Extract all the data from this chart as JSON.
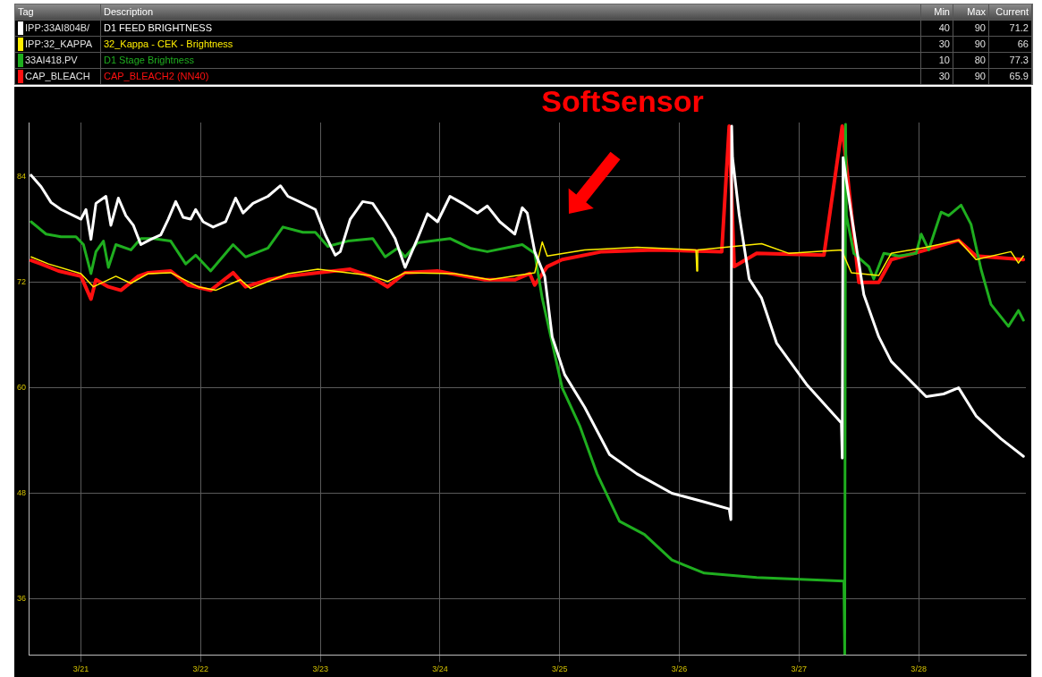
{
  "chart_data": {
    "type": "line",
    "legend": "top",
    "grid": true,
    "marker": "none",
    "line_style": "solid",
    "xlim": [
      "--03-20T13:30",
      "--03-28T21:30"
    ],
    "xticks": [
      {
        "value": "--03-21",
        "label": "3/21"
      },
      {
        "value": "--03-22",
        "label": "3/22"
      },
      {
        "value": "--03-23",
        "label": "3/23"
      },
      {
        "value": "--03-24",
        "label": "3/24"
      },
      {
        "value": "--03-25",
        "label": "3/25"
      },
      {
        "value": "--03-26",
        "label": "3/26"
      },
      {
        "value": "--03-27",
        "label": "3/27"
      },
      {
        "value": "--03-28",
        "label": "3/28"
      }
    ],
    "ylim": [
      29.6,
      90.2
    ],
    "yticks": [
      36,
      48,
      60,
      72,
      84
    ],
    "annotations": [
      "SoftSensor",
      "Tag",
      "Description",
      "Min",
      "Max",
      "Current",
      "IPP:33AI804B/",
      "40",
      "90",
      "71.2",
      "IPP:32_KAPPA",
      "30",
      "90",
      "66",
      "33AI418.PV",
      "10",
      "80",
      "77.3",
      "CAP_BLEACH",
      "30",
      "90",
      "65.9"
    ],
    "series": [
      {
        "name": "D1 FEED BRIGHTNESS",
        "color": "#ffffff",
        "x": [
          "--03-20T14:00",
          "--03-20T16:00",
          "--03-20T18:00",
          "--03-20T20:00",
          "--03-21T00:00",
          "--03-21T01:00",
          "--03-21T02:00",
          "--03-21T03:00",
          "--03-21T05:00",
          "--03-21T06:00",
          "--03-21T07:30",
          "--03-21T09:00",
          "--03-21T10:30",
          "--03-21T12:00",
          "--03-21T14:00",
          "--03-21T16:00",
          "--03-21T17:30",
          "--03-21T19:00",
          "--03-21T20:30",
          "--03-21T22:00",
          "--03-21T23:00",
          "--03-22T00:30",
          "--03-22T02:30",
          "--03-22T05:00",
          "--03-22T07:00",
          "--03-22T08:30",
          "--03-22T10:30",
          "--03-22T13:30",
          "--03-22T16:00",
          "--03-22T17:30",
          "--03-22T20:30",
          "--03-22T23:00",
          "--03-23T01:00",
          "--03-23T03:00",
          "--03-23T04:00",
          "--03-23T06:00",
          "--03-23T08:30",
          "--03-23T10:30",
          "--03-23T13:00",
          "--03-23T15:00",
          "--03-23T17:00",
          "--03-23T19:30",
          "--03-23T21:30",
          "--03-23T23:30",
          "--03-24T02:00",
          "--03-24T04:30",
          "--03-24T07:30",
          "--03-24T09:30",
          "--03-24T12:00",
          "--03-24T15:00",
          "--03-24T16:30",
          "--03-24T17:30",
          "--03-24T19:00",
          "--03-24T21:00",
          "--03-24T22:30",
          "--03-25T01:00",
          "--03-25T05:00",
          "--03-25T10:00",
          "--03-25T15:30",
          "--03-25T22:30",
          "--03-26T05:00",
          "--03-26T10:00",
          "--03-26T10:20",
          "--03-26T10:30",
          "--03-26T10:40",
          "--03-26T12:00",
          "--03-26T14:00",
          "--03-26T16:30",
          "--03-26T19:30",
          "--03-27T01:30",
          "--03-27T08:30",
          "--03-27T08:40",
          "--03-27T08:50",
          "--03-27T10:30",
          "--03-27T13:00",
          "--03-27T16:00",
          "--03-27T18:30",
          "--03-28T01:30",
          "--03-28T05:00",
          "--03-28T08:00",
          "--03-28T11:30",
          "--03-28T16:30",
          "--03-28T21:00"
        ],
        "values": [
          84.2,
          82.9,
          81.1,
          80.3,
          79.2,
          80.3,
          76.9,
          81.0,
          81.8,
          78.5,
          81.6,
          79.6,
          78.5,
          76.3,
          76.9,
          77.4,
          79.2,
          81.2,
          79.4,
          79.2,
          80.3,
          78.9,
          78.3,
          78.9,
          81.6,
          79.9,
          81.0,
          81.8,
          83.0,
          81.8,
          81.0,
          80.3,
          77.4,
          75.1,
          75.5,
          79.2,
          81.2,
          81.0,
          78.9,
          77.0,
          73.7,
          77.0,
          79.8,
          78.9,
          81.8,
          81.0,
          79.9,
          80.7,
          78.9,
          77.5,
          80.5,
          79.9,
          75.5,
          72.7,
          65.8,
          61.5,
          57.8,
          52.4,
          50.2,
          48.0,
          47.0,
          46.2,
          45.0,
          89.8,
          86.2,
          79.7,
          72.4,
          70.2,
          65.1,
          60.4,
          56.0,
          52.0,
          86.2,
          79.7,
          70.6,
          65.8,
          63.0,
          59.0,
          59.3,
          60.0,
          56.8,
          54.2,
          52.2
        ]
      },
      {
        "name": "32_Kappa - CEK - Brightness",
        "color": "#ffee00",
        "x": [
          "--03-20T14:00",
          "--03-20T17:30",
          "--03-21T00:00",
          "--03-21T02:30",
          "--03-21T07:00",
          "--03-21T10:00",
          "--03-21T13:30",
          "--03-21T18:00",
          "--03-21T23:30",
          "--03-22T03:00",
          "--03-22T08:00",
          "--03-22T10:00",
          "--03-22T17:30",
          "--03-22T23:30",
          "--03-23T10:00",
          "--03-23T13:30",
          "--03-23T17:00",
          "--03-24T03:00",
          "--03-24T10:00",
          "--03-24T19:00",
          "--03-24T20:30",
          "--03-24T21:30",
          "--03-25T05:00",
          "--03-25T15:30",
          "--03-26T03:20",
          "--03-26T03:30",
          "--03-26T03:40",
          "--03-26T16:30",
          "--03-26T22:00",
          "--03-27T08:30",
          "--03-27T10:30",
          "--03-27T16:00",
          "--03-27T18:30",
          "--03-28T01:30",
          "--03-28T08:00",
          "--03-28T11:30",
          "--03-28T18:30",
          "--03-28T20:00",
          "--03-28T21:00"
        ],
        "values": [
          74.9,
          74.1,
          73.0,
          71.5,
          72.7,
          71.9,
          73.0,
          73.1,
          71.5,
          71.1,
          72.3,
          71.3,
          73.0,
          73.5,
          72.8,
          72.1,
          73.1,
          73.0,
          72.3,
          73.1,
          76.6,
          75.0,
          75.7,
          76.0,
          75.7,
          73.3,
          75.7,
          76.4,
          75.3,
          75.7,
          73.1,
          72.8,
          75.3,
          76.0,
          76.8,
          74.6,
          75.5,
          74.2,
          75.0
        ]
      },
      {
        "name": "D1 Stage Brightness",
        "color": "#1fae1f",
        "x": [
          "--03-20T14:00",
          "--03-20T17:00",
          "--03-20T20:00",
          "--03-20T23:00",
          "--03-21T00:30",
          "--03-21T02:00",
          "--03-21T03:00",
          "--03-21T04:30",
          "--03-21T05:30",
          "--03-21T07:00",
          "--03-21T10:00",
          "--03-21T12:00",
          "--03-21T14:30",
          "--03-21T18:00",
          "--03-21T21:00",
          "--03-21T23:00",
          "--03-22T02:00",
          "--03-22T06:30",
          "--03-22T09:00",
          "--03-22T13:30",
          "--03-22T16:30",
          "--03-22T20:30",
          "--03-22T23:00",
          "--03-23T01:30",
          "--03-23T05:30",
          "--03-23T10:30",
          "--03-23T13:00",
          "--03-23T15:30",
          "--03-23T17:00",
          "--03-23T19:30",
          "--03-24T02:00",
          "--03-24T06:00",
          "--03-24T09:30",
          "--03-24T16:30",
          "--03-24T19:00",
          "--03-24T20:30",
          "--03-24T22:30",
          "--03-25T00:30",
          "--03-25T04:00",
          "--03-25T07:30",
          "--03-25T12:00",
          "--03-25T17:00",
          "--03-25T22:30",
          "--03-26T05:00",
          "--03-26T15:30",
          "--03-27T09:00",
          "--03-27T09:10",
          "--03-27T09:20",
          "--03-27T09:30",
          "--03-27T11:00",
          "--03-27T14:00",
          "--03-27T15:00",
          "--03-27T17:00",
          "--03-27T20:00",
          "--03-27T23:30",
          "--03-28T00:30",
          "--03-28T02:00",
          "--03-28T04:30",
          "--03-28T06:00",
          "--03-28T08:30",
          "--03-28T10:30",
          "--03-28T12:30",
          "--03-28T14:30",
          "--03-28T18:00",
          "--03-28T20:00",
          "--03-28T21:00"
        ],
        "values": [
          78.9,
          77.5,
          77.2,
          77.2,
          76.3,
          73.0,
          75.5,
          76.7,
          73.7,
          76.3,
          75.7,
          77.0,
          77.0,
          76.7,
          74.1,
          75.1,
          73.3,
          76.3,
          74.9,
          75.9,
          78.3,
          77.7,
          77.7,
          76.1,
          76.7,
          77.0,
          74.9,
          75.9,
          74.9,
          76.5,
          77.0,
          75.9,
          75.5,
          76.3,
          75.3,
          70.2,
          65.1,
          60.0,
          55.7,
          50.2,
          44.8,
          43.3,
          40.4,
          38.9,
          38.4,
          38.0,
          29.6,
          90.0,
          79.6,
          75.3,
          73.8,
          72.4,
          75.3,
          75.0,
          75.3,
          77.5,
          75.7,
          80.0,
          79.6,
          80.8,
          78.6,
          73.5,
          69.5,
          67.0,
          68.8,
          67.7
        ]
      },
      {
        "name": "CAP_BLEACH2 (NN40)",
        "color": "#ff1010",
        "x": [
          "--03-20T14:00",
          "--03-20T16:00",
          "--03-20T19:30",
          "--03-21T00:00",
          "--03-21T02:00",
          "--03-21T03:00",
          "--03-21T05:30",
          "--03-21T08:00",
          "--03-21T11:30",
          "--03-21T13:30",
          "--03-21T18:00",
          "--03-21T21:30",
          "--03-22T02:00",
          "--03-22T06:30",
          "--03-22T09:00",
          "--03-22T13:30",
          "--03-22T17:30",
          "--03-22T23:30",
          "--03-23T06:00",
          "--03-23T10:00",
          "--03-23T13:30",
          "--03-23T17:00",
          "--03-23T23:30",
          "--03-24T04:00",
          "--03-24T09:00",
          "--03-24T15:00",
          "--03-24T18:00",
          "--03-24T19:00",
          "--03-24T21:30",
          "--03-25T00:30",
          "--03-25T08:30",
          "--03-25T19:00",
          "--03-26T08:30",
          "--03-26T10:00",
          "--03-26T11:00",
          "--03-26T15:30",
          "--03-27T05:00",
          "--03-27T08:40",
          "--03-27T12:00",
          "--03-27T16:00",
          "--03-27T18:30",
          "--03-28T01:30",
          "--03-28T08:00",
          "--03-28T11:30",
          "--03-28T21:00"
        ],
        "values": [
          74.5,
          74.1,
          73.3,
          72.7,
          70.1,
          72.3,
          71.5,
          71.1,
          72.7,
          73.1,
          73.3,
          71.7,
          71.1,
          73.1,
          71.5,
          72.3,
          72.7,
          73.1,
          73.5,
          72.7,
          71.5,
          73.1,
          73.3,
          72.8,
          72.3,
          72.3,
          73.0,
          71.7,
          73.8,
          74.6,
          75.5,
          75.7,
          75.5,
          89.8,
          73.8,
          75.3,
          75.1,
          89.8,
          72.0,
          72.0,
          74.6,
          75.7,
          76.8,
          75.0,
          74.6
        ]
      }
    ]
  }
}
